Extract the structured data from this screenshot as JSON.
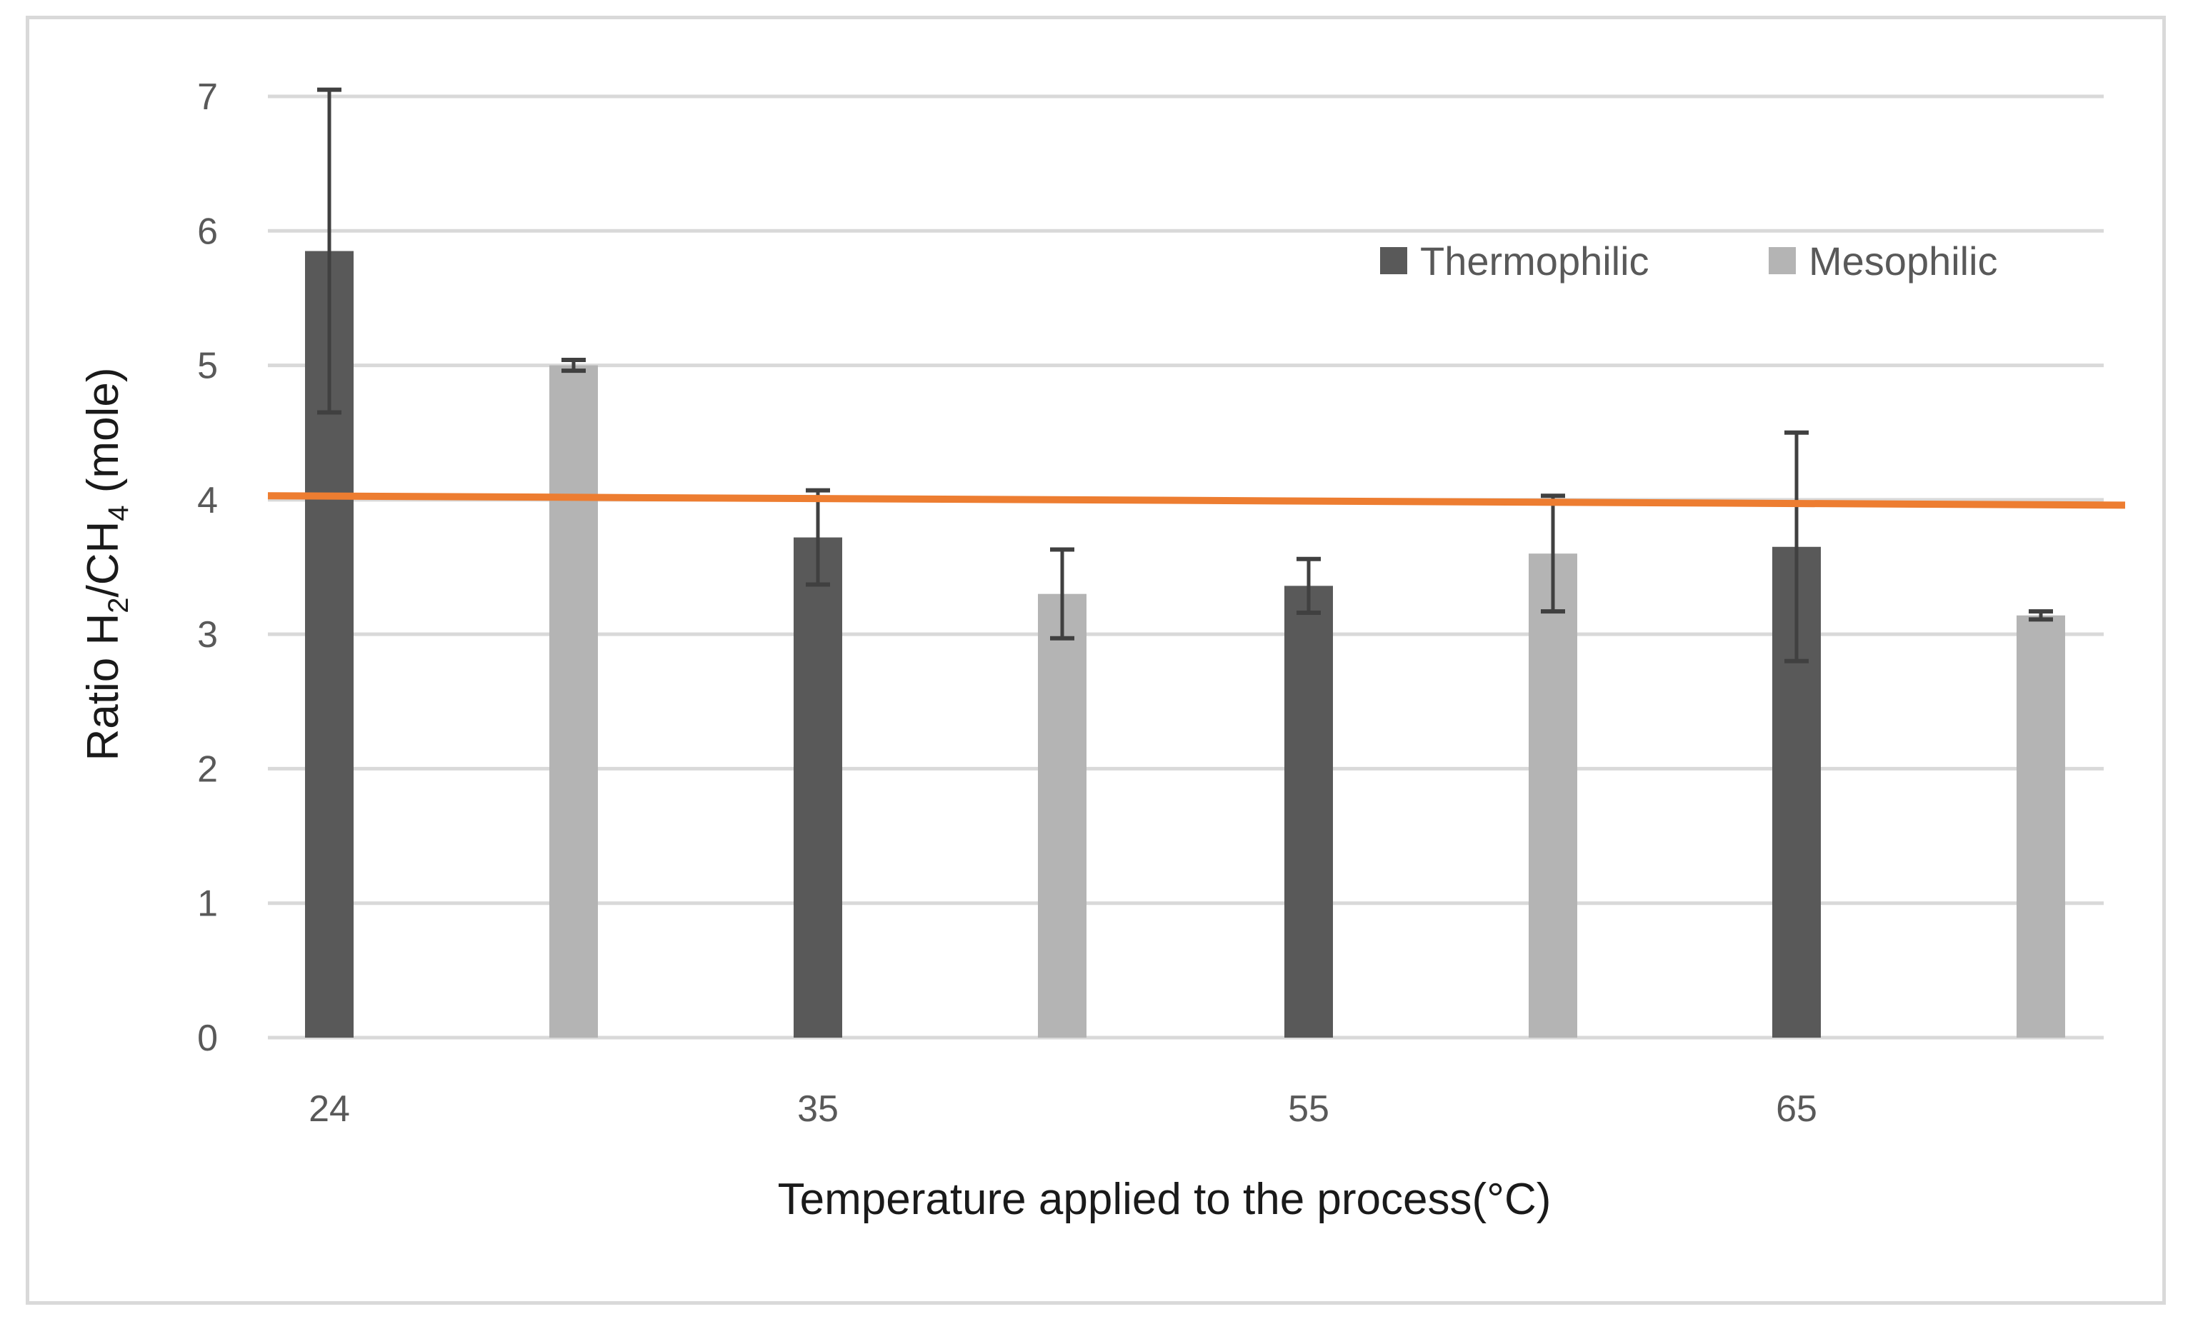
{
  "chart_data": {
    "type": "bar",
    "title": "",
    "xlabel": "Temperature applied to the process(°C)",
    "ylabel_parts": [
      "Ratio H",
      "2",
      "/CH",
      "4",
      " (mole)"
    ],
    "categories": [
      "24",
      "35",
      "55",
      "65"
    ],
    "ylim": [
      0,
      7
    ],
    "yticks": [
      0,
      1,
      2,
      3,
      4,
      5,
      6,
      7
    ],
    "grid": true,
    "legend_position": "top-right",
    "series": [
      {
        "name": "Thermophilic",
        "color": "#595959",
        "values": [
          5.85,
          3.72,
          3.36,
          3.65
        ],
        "errors": [
          1.2,
          0.35,
          0.2,
          0.85
        ]
      },
      {
        "name": "Mesophilic",
        "color": "#b4b4b4",
        "values": [
          5.0,
          3.3,
          3.6,
          3.14
        ],
        "errors": [
          0.04,
          0.33,
          0.43,
          0.03
        ]
      }
    ],
    "reference_line": {
      "start": 4.03,
      "end": 3.96,
      "color": "#ed7d31"
    },
    "error_bar_color": "#404040",
    "gridline_color": "#d9d9d9"
  }
}
